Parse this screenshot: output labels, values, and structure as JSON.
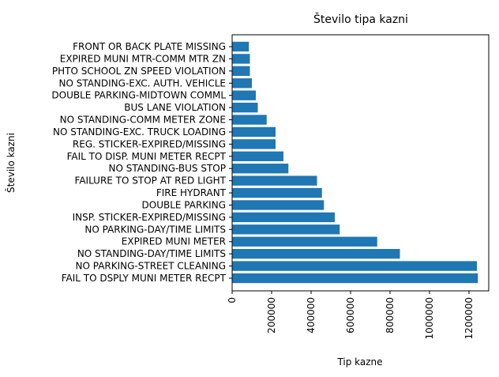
{
  "chart_data": {
    "type": "bar",
    "orientation": "horizontal",
    "title": "Število tipa kazni",
    "xlabel": "Tip kazne",
    "ylabel": "Število kazni",
    "xlim": [
      0,
      1300000
    ],
    "xticks": [
      0,
      200000,
      400000,
      600000,
      800000,
      1000000,
      1200000
    ],
    "xtick_labels": [
      "0",
      "200000",
      "400000",
      "600000",
      "800000",
      "1000000",
      "1200000"
    ],
    "grid": false,
    "bar_color": "#1f77b4",
    "categories": [
      "FAIL TO DSPLY MUNI METER RECPT",
      "NO PARKING-STREET CLEANING",
      "NO STANDING-DAY/TIME LIMITS",
      "EXPIRED MUNI METER",
      "NO PARKING-DAY/TIME LIMITS",
      "INSP. STICKER-EXPIRED/MISSING",
      "DOUBLE PARKING",
      "FIRE HYDRANT",
      "FAILURE TO STOP AT RED LIGHT",
      "NO STANDING-BUS STOP",
      "FAIL TO DISP. MUNI METER RECPT",
      "REG. STICKER-EXPIRED/MISSING",
      "NO STANDING-EXC. TRUCK LOADING",
      "NO STANDING-COMM METER ZONE",
      "BUS LANE VIOLATION",
      "DOUBLE PARKING-MIDTOWN COMML",
      "NO STANDING-EXC. AUTH. VEHICLE",
      "PHTO SCHOOL ZN SPEED VIOLATION",
      "EXPIRED MUNI MTR-COMM MTR ZN",
      "FRONT OR BACK PLATE MISSING"
    ],
    "values": [
      1245000,
      1240000,
      850000,
      735000,
      545000,
      520000,
      465000,
      455000,
      430000,
      285000,
      260000,
      220000,
      220000,
      175000,
      130000,
      120000,
      100000,
      90000,
      90000,
      85000
    ]
  }
}
